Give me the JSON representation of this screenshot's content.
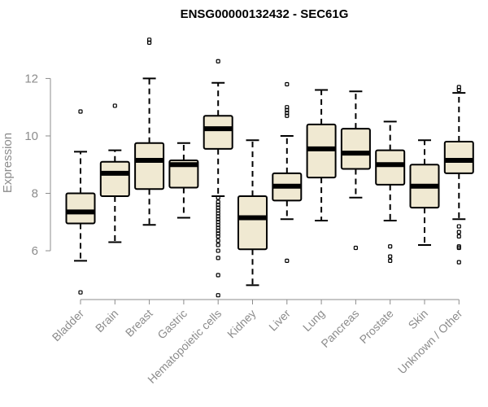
{
  "chart_data": {
    "type": "boxplot",
    "title": "ENSG00000132432 - SEC61G",
    "ylabel": "Expression",
    "xlabel": "",
    "ylim": [
      4.3,
      13.6
    ],
    "yticks": [
      6,
      8,
      10,
      12
    ],
    "grid": false,
    "legend": "none",
    "box_fill": "#f0e9d2",
    "box_stroke": "#000000",
    "axis_color": "#8c8c8c",
    "categories": [
      "Bladder",
      "Brain",
      "Breast",
      "Gastric",
      "Hematopoietic cells",
      "Kidney",
      "Liver",
      "Lung",
      "Pancreas",
      "Prostate",
      "Skin",
      "Unknown / Other"
    ],
    "boxes": [
      {
        "whisker_low": 5.65,
        "q1": 6.95,
        "median": 7.35,
        "q3": 8.0,
        "whisker_high": 9.45,
        "outliers": [
          10.85,
          4.55
        ]
      },
      {
        "whisker_low": 6.3,
        "q1": 7.9,
        "median": 8.7,
        "q3": 9.1,
        "whisker_high": 9.5,
        "outliers": [
          11.05
        ]
      },
      {
        "whisker_low": 6.9,
        "q1": 8.15,
        "median": 9.15,
        "q3": 9.75,
        "whisker_high": 12.0,
        "outliers": [
          13.25,
          13.35
        ]
      },
      {
        "whisker_low": 7.15,
        "q1": 8.2,
        "median": 9.0,
        "q3": 9.15,
        "whisker_high": 9.75,
        "outliers": []
      },
      {
        "whisker_low": 7.9,
        "q1": 9.55,
        "median": 10.25,
        "q3": 10.7,
        "whisker_high": 11.85,
        "outliers": [
          12.6,
          7.85,
          7.7,
          7.6,
          7.5,
          7.4,
          7.3,
          7.2,
          7.1,
          7.0,
          6.9,
          6.8,
          6.7,
          6.6,
          6.5,
          6.35,
          6.2,
          6.0,
          5.75,
          5.15,
          4.45
        ]
      },
      {
        "whisker_low": 4.8,
        "q1": 6.05,
        "median": 7.15,
        "q3": 7.9,
        "whisker_high": 9.85,
        "outliers": []
      },
      {
        "whisker_low": 7.1,
        "q1": 7.75,
        "median": 8.25,
        "q3": 8.7,
        "whisker_high": 10.0,
        "outliers": [
          11.8,
          11.0,
          10.9,
          10.8,
          10.7,
          5.65
        ]
      },
      {
        "whisker_low": 7.05,
        "q1": 8.55,
        "median": 9.55,
        "q3": 10.4,
        "whisker_high": 11.6,
        "outliers": []
      },
      {
        "whisker_low": 7.85,
        "q1": 8.85,
        "median": 9.4,
        "q3": 10.25,
        "whisker_high": 11.55,
        "outliers": [
          6.1
        ]
      },
      {
        "whisker_low": 7.05,
        "q1": 8.3,
        "median": 9.0,
        "q3": 9.5,
        "whisker_high": 10.5,
        "outliers": [
          6.15,
          5.8,
          5.65
        ]
      },
      {
        "whisker_low": 6.2,
        "q1": 7.5,
        "median": 8.25,
        "q3": 9.0,
        "whisker_high": 9.85,
        "outliers": []
      },
      {
        "whisker_low": 7.1,
        "q1": 8.7,
        "median": 9.15,
        "q3": 9.8,
        "whisker_high": 11.5,
        "outliers": [
          11.7,
          11.6,
          6.85,
          6.65,
          6.5,
          6.15,
          6.1,
          5.6
        ]
      }
    ]
  }
}
